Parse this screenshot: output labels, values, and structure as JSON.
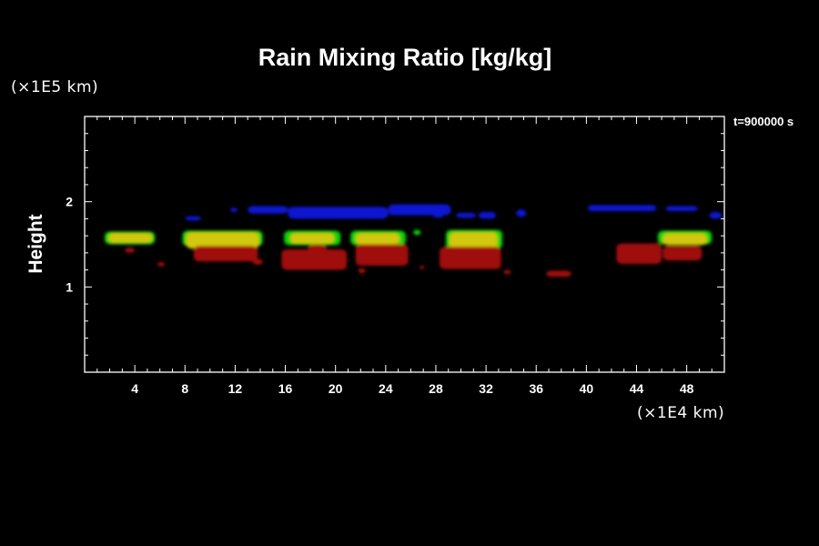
{
  "chart_data": {
    "type": "heatmap",
    "title": "Rain Mixing Ratio [kg/kg]",
    "ylabel": "Height",
    "y_multiplier": "(×1E5 km)",
    "x_multiplier": "(×1E4 km)",
    "time_label": "t=900000 s",
    "xlim": [
      0,
      51
    ],
    "ylim": [
      0,
      3
    ],
    "x_ticks": [
      4,
      8,
      12,
      16,
      20,
      24,
      28,
      32,
      36,
      40,
      44,
      48
    ],
    "y_ticks": [
      1,
      2
    ],
    "colors": {
      "background": "#000000",
      "axes": "#ffffff",
      "low": "#0a14d2",
      "mid_low": "#0ad20a",
      "mid_high": "#d2c80a",
      "high": "#a00a0a"
    },
    "regions": [
      {
        "level": "low",
        "x": [
          8.0,
          9.3
        ],
        "y": [
          1.78,
          1.83
        ]
      },
      {
        "level": "low",
        "x": [
          11.6,
          12.2
        ],
        "y": [
          1.88,
          1.93
        ]
      },
      {
        "level": "low",
        "x": [
          13.0,
          16.2
        ],
        "y": [
          1.86,
          1.95
        ]
      },
      {
        "level": "low",
        "x": [
          16.2,
          24.2
        ],
        "y": [
          1.8,
          1.94
        ]
      },
      {
        "level": "low",
        "x": [
          24.2,
          29.2
        ],
        "y": [
          1.84,
          1.97
        ]
      },
      {
        "level": "low",
        "x": [
          27.8,
          28.6
        ],
        "y": [
          1.81,
          1.85
        ]
      },
      {
        "level": "low",
        "x": [
          29.6,
          31.2
        ],
        "y": [
          1.81,
          1.87
        ]
      },
      {
        "level": "low",
        "x": [
          31.4,
          32.8
        ],
        "y": [
          1.8,
          1.88
        ]
      },
      {
        "level": "low",
        "x": [
          34.4,
          35.2
        ],
        "y": [
          1.82,
          1.91
        ]
      },
      {
        "level": "low",
        "x": [
          40.1,
          45.6
        ],
        "y": [
          1.89,
          1.96
        ]
      },
      {
        "level": "low",
        "x": [
          46.3,
          48.9
        ],
        "y": [
          1.89,
          1.95
        ]
      },
      {
        "level": "low",
        "x": [
          49.8,
          50.8
        ],
        "y": [
          1.8,
          1.88
        ]
      },
      {
        "level": "mid_low",
        "x": [
          1.6,
          5.6
        ],
        "y": [
          1.5,
          1.65
        ]
      },
      {
        "level": "mid_low",
        "x": [
          7.8,
          14.2
        ],
        "y": [
          1.48,
          1.66
        ]
      },
      {
        "level": "mid_low",
        "x": [
          15.9,
          20.4
        ],
        "y": [
          1.49,
          1.66
        ]
      },
      {
        "level": "mid_low",
        "x": [
          21.2,
          25.6
        ],
        "y": [
          1.49,
          1.66
        ]
      },
      {
        "level": "mid_low",
        "x": [
          26.2,
          26.8
        ],
        "y": [
          1.61,
          1.67
        ]
      },
      {
        "level": "mid_low",
        "x": [
          28.8,
          33.3
        ],
        "y": [
          1.45,
          1.67
        ]
      },
      {
        "level": "mid_low",
        "x": [
          45.7,
          50.0
        ],
        "y": [
          1.5,
          1.66
        ]
      },
      {
        "level": "mid_high",
        "x": [
          1.9,
          5.4
        ],
        "y": [
          1.52,
          1.63
        ]
      },
      {
        "level": "mid_high",
        "x": [
          8.1,
          13.9
        ],
        "y": [
          1.45,
          1.64
        ]
      },
      {
        "level": "mid_high",
        "x": [
          16.4,
          19.9
        ],
        "y": [
          1.51,
          1.63
        ]
      },
      {
        "level": "mid_high",
        "x": [
          21.6,
          25.1
        ],
        "y": [
          1.5,
          1.63
        ]
      },
      {
        "level": "mid_high",
        "x": [
          29.1,
          32.9
        ],
        "y": [
          1.45,
          1.64
        ]
      },
      {
        "level": "mid_high",
        "x": [
          46.1,
          49.6
        ],
        "y": [
          1.49,
          1.63
        ]
      },
      {
        "level": "high",
        "x": [
          3.2,
          4.0
        ],
        "y": [
          1.4,
          1.46
        ]
      },
      {
        "level": "high",
        "x": [
          5.8,
          6.4
        ],
        "y": [
          1.24,
          1.29
        ]
      },
      {
        "level": "high",
        "x": [
          8.7,
          13.8
        ],
        "y": [
          1.3,
          1.48
        ]
      },
      {
        "level": "high",
        "x": [
          13.4,
          14.2
        ],
        "y": [
          1.26,
          1.33
        ]
      },
      {
        "level": "high",
        "x": [
          15.7,
          20.9
        ],
        "y": [
          1.2,
          1.44
        ]
      },
      {
        "level": "high",
        "x": [
          17.8,
          19.3
        ],
        "y": [
          1.38,
          1.5
        ]
      },
      {
        "level": "high",
        "x": [
          21.6,
          25.8
        ],
        "y": [
          1.25,
          1.5
        ]
      },
      {
        "level": "high",
        "x": [
          21.8,
          22.4
        ],
        "y": [
          1.16,
          1.22
        ]
      },
      {
        "level": "high",
        "x": [
          26.7,
          27.1
        ],
        "y": [
          1.21,
          1.25
        ]
      },
      {
        "level": "high",
        "x": [
          28.3,
          33.2
        ],
        "y": [
          1.21,
          1.47
        ]
      },
      {
        "level": "high",
        "x": [
          33.4,
          34.0
        ],
        "y": [
          1.15,
          1.2
        ]
      },
      {
        "level": "high",
        "x": [
          36.8,
          38.8
        ],
        "y": [
          1.12,
          1.19
        ]
      },
      {
        "level": "high",
        "x": [
          42.4,
          46.0
        ],
        "y": [
          1.27,
          1.51
        ]
      },
      {
        "level": "high",
        "x": [
          46.1,
          49.2
        ],
        "y": [
          1.31,
          1.48
        ]
      }
    ]
  }
}
